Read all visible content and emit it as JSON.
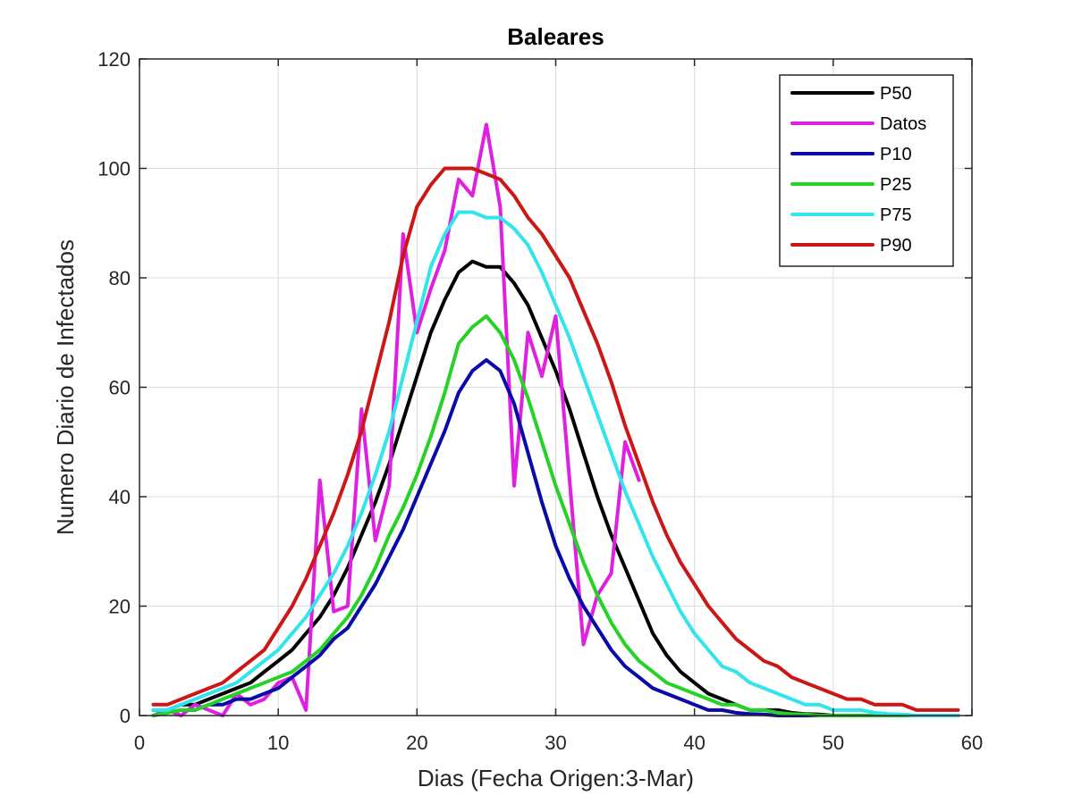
{
  "chart_data": {
    "type": "line",
    "title": "Baleares",
    "xlabel": "Dias (Fecha Origen:3-Mar)",
    "ylabel": "Numero Diario de Infectados",
    "xlim": [
      0,
      60
    ],
    "ylim": [
      0,
      120
    ],
    "xticks": [
      0,
      10,
      20,
      30,
      40,
      50,
      60
    ],
    "yticks": [
      0,
      20,
      40,
      60,
      80,
      100,
      120
    ],
    "grid": true,
    "legend_position": "top-right",
    "series": [
      {
        "name": "P50",
        "color": "#000000",
        "x": [
          1,
          2,
          3,
          4,
          5,
          6,
          7,
          8,
          9,
          10,
          11,
          12,
          13,
          14,
          15,
          16,
          17,
          18,
          19,
          20,
          21,
          22,
          23,
          24,
          25,
          26,
          27,
          28,
          29,
          30,
          31,
          32,
          33,
          34,
          35,
          36,
          37,
          38,
          39,
          40,
          41,
          42,
          43,
          44,
          45,
          46,
          47,
          48,
          49,
          50,
          51,
          52,
          53,
          54,
          55,
          56,
          57,
          58,
          59
        ],
        "values": [
          1,
          1,
          2,
          2,
          3,
          4,
          5,
          6,
          8,
          10,
          12,
          15,
          18,
          22,
          27,
          33,
          39,
          46,
          54,
          62,
          70,
          76,
          81,
          83,
          82,
          82,
          79,
          75,
          69,
          63,
          56,
          48,
          40,
          33,
          27,
          21,
          15,
          11,
          8,
          6,
          4,
          3,
          2,
          1,
          1,
          1,
          0.5,
          0.3,
          0.2,
          0,
          0,
          0,
          0,
          0,
          0,
          0,
          0,
          0,
          0
        ]
      },
      {
        "name": "Datos",
        "color": "#e020e0",
        "x": [
          1,
          2,
          3,
          4,
          5,
          6,
          7,
          8,
          9,
          10,
          11,
          12,
          13,
          14,
          15,
          16,
          17,
          18,
          19,
          20,
          21,
          22,
          23,
          24,
          25,
          26,
          27,
          28,
          29,
          30,
          31,
          32,
          33,
          34,
          35,
          36
        ],
        "values": [
          0,
          1,
          0,
          2,
          1,
          0,
          4,
          2,
          3,
          6,
          7,
          1,
          43,
          19,
          20,
          56,
          32,
          42,
          88,
          70,
          78,
          85,
          98,
          95,
          108,
          93,
          42,
          70,
          62,
          73,
          43,
          13,
          22,
          26,
          50,
          43
        ]
      },
      {
        "name": "P10",
        "color": "#0a0aa8",
        "x": [
          1,
          2,
          3,
          4,
          5,
          6,
          7,
          8,
          9,
          10,
          11,
          12,
          13,
          14,
          15,
          16,
          17,
          18,
          19,
          20,
          21,
          22,
          23,
          24,
          25,
          26,
          27,
          28,
          29,
          30,
          31,
          32,
          33,
          34,
          35,
          36,
          37,
          38,
          39,
          40,
          41,
          42,
          43,
          44,
          45,
          46,
          47,
          48,
          49,
          50,
          51,
          52,
          53,
          54,
          55,
          56,
          57,
          58,
          59
        ],
        "values": [
          0,
          0.5,
          1,
          1,
          2,
          2,
          3,
          3,
          4,
          5,
          7,
          9,
          11,
          14,
          16,
          20,
          24,
          29,
          34,
          40,
          46,
          52,
          59,
          63,
          65,
          63,
          57,
          48,
          39,
          31,
          25,
          20,
          16,
          12,
          9,
          7,
          5,
          4,
          3,
          2,
          1,
          1,
          0.5,
          0.3,
          0.2,
          0,
          0,
          0,
          0,
          0,
          0,
          0,
          0,
          0,
          0,
          0,
          0,
          0,
          0
        ]
      },
      {
        "name": "P25",
        "color": "#27d227",
        "x": [
          1,
          2,
          3,
          4,
          5,
          6,
          7,
          8,
          9,
          10,
          11,
          12,
          13,
          14,
          15,
          16,
          17,
          18,
          19,
          20,
          21,
          22,
          23,
          24,
          25,
          26,
          27,
          28,
          29,
          30,
          31,
          32,
          33,
          34,
          35,
          36,
          37,
          38,
          39,
          40,
          41,
          42,
          43,
          44,
          45,
          46,
          47,
          48,
          49,
          50,
          51,
          52,
          53,
          54,
          55,
          56,
          57,
          58,
          59
        ],
        "values": [
          0,
          0.5,
          1,
          1,
          2,
          3,
          4,
          5,
          6,
          7,
          8,
          10,
          12,
          15,
          18,
          22,
          27,
          33,
          38,
          44,
          51,
          59,
          68,
          71,
          73,
          70,
          65,
          58,
          50,
          42,
          35,
          28,
          22,
          17,
          13,
          10,
          8,
          6,
          5,
          4,
          3,
          2,
          2,
          1,
          1,
          0.5,
          0.3,
          0.2,
          0,
          0,
          0,
          0,
          0,
          0,
          0,
          0,
          0,
          0,
          0
        ]
      },
      {
        "name": "P75",
        "color": "#33e4ec",
        "x": [
          1,
          2,
          3,
          4,
          5,
          6,
          7,
          8,
          9,
          10,
          11,
          12,
          13,
          14,
          15,
          16,
          17,
          18,
          19,
          20,
          21,
          22,
          23,
          24,
          25,
          26,
          27,
          28,
          29,
          30,
          31,
          32,
          33,
          34,
          35,
          36,
          37,
          38,
          39,
          40,
          41,
          42,
          43,
          44,
          45,
          46,
          47,
          48,
          49,
          50,
          51,
          52,
          53,
          54,
          55,
          56,
          57,
          58,
          59
        ],
        "values": [
          1,
          1,
          2,
          3,
          4,
          5,
          6,
          8,
          10,
          12,
          15,
          18,
          22,
          26,
          31,
          37,
          44,
          52,
          62,
          72,
          82,
          88,
          92,
          92,
          91,
          91,
          89,
          86,
          81,
          75,
          69,
          62,
          55,
          48,
          41,
          35,
          29,
          24,
          19,
          15,
          12,
          9,
          8,
          6,
          5,
          4,
          3,
          2,
          2,
          1,
          1,
          1,
          0.5,
          0.3,
          0.2,
          0,
          0,
          0,
          0
        ]
      },
      {
        "name": "P90",
        "color": "#cc1717",
        "x": [
          1,
          2,
          3,
          4,
          5,
          6,
          7,
          8,
          9,
          10,
          11,
          12,
          13,
          14,
          15,
          16,
          17,
          18,
          19,
          20,
          21,
          22,
          23,
          24,
          25,
          26,
          27,
          28,
          29,
          30,
          31,
          32,
          33,
          34,
          35,
          36,
          37,
          38,
          39,
          40,
          41,
          42,
          43,
          44,
          45,
          46,
          47,
          48,
          49,
          50,
          51,
          52,
          53,
          54,
          55,
          56,
          57,
          58,
          59
        ],
        "values": [
          2,
          2,
          3,
          4,
          5,
          6,
          8,
          10,
          12,
          16,
          20,
          25,
          31,
          37,
          44,
          52,
          62,
          72,
          84,
          93,
          97,
          100,
          100,
          100,
          99,
          98,
          95,
          91,
          88,
          84,
          80,
          74,
          68,
          61,
          53,
          46,
          39,
          33,
          28,
          24,
          20,
          17,
          14,
          12,
          10,
          9,
          7,
          6,
          5,
          4,
          3,
          3,
          2,
          2,
          2,
          1,
          1,
          1,
          1
        ]
      }
    ]
  }
}
